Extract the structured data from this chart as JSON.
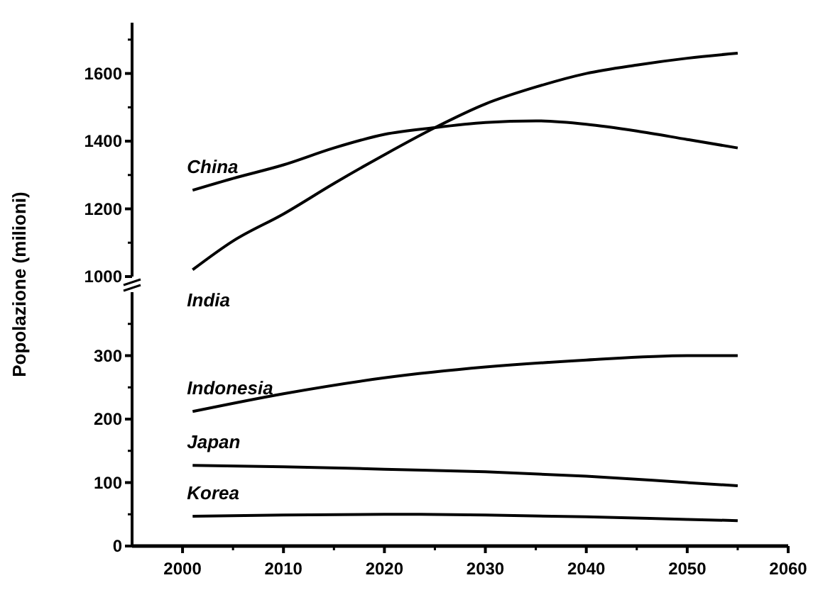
{
  "chart_data": [
    {
      "type": "line",
      "xlim": [
        1995,
        2060
      ],
      "ylim": [
        1000,
        1750
      ],
      "yticks": [
        1000,
        1200,
        1400,
        1600
      ],
      "tick_labels": "y",
      "series": [
        {
          "name": "China",
          "color": "#000000",
          "x": [
            2001,
            2005,
            2010,
            2015,
            2020,
            2025,
            2030,
            2035,
            2040,
            2045,
            2050,
            2055
          ],
          "values": [
            1255,
            1290,
            1330,
            1380,
            1420,
            1440,
            1455,
            1460,
            1450,
            1430,
            1405,
            1380
          ]
        },
        {
          "name": "India",
          "color": "#000000",
          "x": [
            2001,
            2005,
            2010,
            2015,
            2020,
            2025,
            2030,
            2035,
            2040,
            2045,
            2050,
            2055
          ],
          "values": [
            1020,
            1105,
            1185,
            1275,
            1360,
            1440,
            1510,
            1560,
            1600,
            1625,
            1645,
            1660
          ]
        }
      ]
    },
    {
      "type": "line",
      "ylabel": "Popolazione (milioni)",
      "xlim": [
        1995,
        2060
      ],
      "xticks": [
        2000,
        2010,
        2020,
        2030,
        2040,
        2050,
        2060
      ],
      "ylim": [
        0,
        400
      ],
      "yticks": [
        0,
        100,
        200,
        300
      ],
      "series": [
        {
          "name": "Indonesia",
          "color": "#000000",
          "x": [
            2001,
            2010,
            2020,
            2030,
            2040,
            2050,
            2055
          ],
          "values": [
            212,
            240,
            265,
            282,
            293,
            300,
            300
          ]
        },
        {
          "name": "Japan",
          "color": "#000000",
          "x": [
            2001,
            2010,
            2020,
            2030,
            2040,
            2050,
            2055
          ],
          "values": [
            127,
            125,
            121,
            117,
            110,
            100,
            95
          ]
        },
        {
          "name": "Korea",
          "color": "#000000",
          "x": [
            2001,
            2010,
            2020,
            2030,
            2040,
            2050,
            2055
          ],
          "values": [
            47,
            49,
            50,
            49,
            46,
            42,
            40
          ]
        }
      ]
    }
  ]
}
